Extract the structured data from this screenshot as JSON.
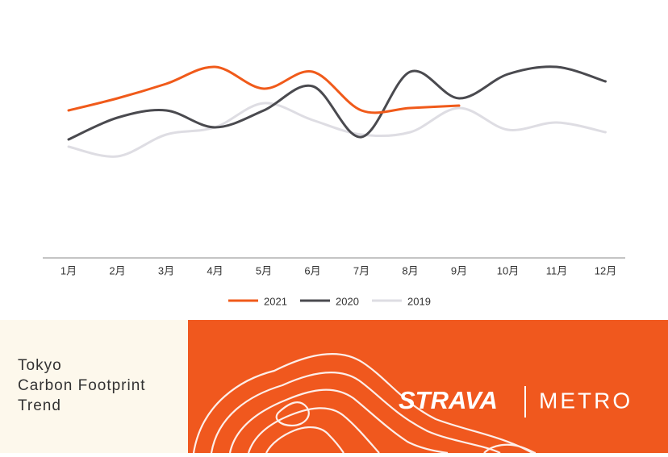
{
  "chart_data": {
    "type": "line",
    "categories": [
      "1月",
      "2月",
      "3月",
      "4月",
      "5月",
      "6月",
      "7月",
      "8月",
      "9月",
      "10月",
      "11月",
      "12月"
    ],
    "series": [
      {
        "name": "2021",
        "color": "#f05a1a",
        "values": [
          61,
          66,
          72,
          79,
          70,
          77,
          61,
          62,
          63,
          null,
          null,
          null
        ]
      },
      {
        "name": "2020",
        "color": "#4a4a4f",
        "values": [
          49,
          58,
          61,
          54,
          61,
          71,
          50,
          77,
          66,
          76,
          79,
          73
        ]
      },
      {
        "name": "2019",
        "color": "#dedde3",
        "values": [
          46,
          42,
          51,
          54,
          64,
          57,
          51,
          52,
          62,
          53,
          56,
          52
        ]
      }
    ],
    "ylim": [
      0,
      100
    ],
    "grid": false,
    "legend": "bottom"
  },
  "banner": {
    "title_lines": [
      "Tokyo",
      "Carbon Footprint",
      "Trend"
    ],
    "brand": "STRAVA",
    "brand_sub": "METRO"
  }
}
